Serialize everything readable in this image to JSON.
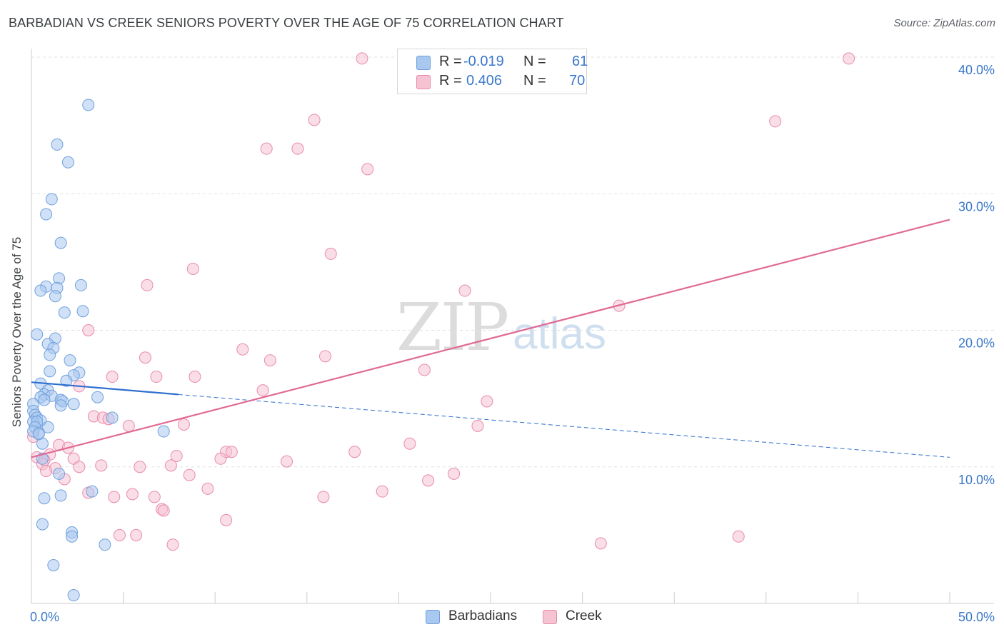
{
  "title": "BARBADIAN VS CREEK SENIORS POVERTY OVER THE AGE OF 75 CORRELATION CHART",
  "source": "Source: ZipAtlas.com",
  "watermark": {
    "zip": "ZIP",
    "atlas": "atlas"
  },
  "colors": {
    "barbadian_fill": "#a9c8f0",
    "barbadian_stroke": "#6fa0dc",
    "barbadian_line": "#2f6fd0",
    "creek_fill": "#f6c3d3",
    "creek_stroke": "#e98aaa",
    "creek_line": "#e06a95",
    "axis_text": "#3a78c9",
    "grid": "#e0e0e0"
  },
  "legend": {
    "rows": [
      {
        "r_label": "R =",
        "r_value": "-0.019",
        "n_label": "N =",
        "n_value": "61",
        "color": "#a9c8f0",
        "border": "#6fa0dc"
      },
      {
        "r_label": "R =",
        "r_value": "0.406",
        "n_label": "N =",
        "n_value": "70",
        "color": "#f6c3d3",
        "border": "#e98aaa"
      }
    ]
  },
  "bottom_legend": [
    {
      "label": "Barbadians",
      "color": "#a9c8f0",
      "border": "#6fa0dc"
    },
    {
      "label": "Creek",
      "color": "#f6c3d3",
      "border": "#e98aaa"
    }
  ],
  "chart_data": {
    "type": "scatter",
    "title": "BARBADIAN VS CREEK SENIORS POVERTY OVER THE AGE OF 75 CORRELATION CHART",
    "xlabel": "",
    "ylabel": "Seniors Poverty Over the Age of 75",
    "xlim": [
      0,
      50
    ],
    "ylim": [
      0,
      40
    ],
    "x_tick_labels": [
      {
        "value": 0,
        "label": "0.0%"
      },
      {
        "value": 50,
        "label": "50.0%"
      }
    ],
    "y_tick_labels": [
      {
        "value": 10,
        "label": "10.0%"
      },
      {
        "value": 20,
        "label": "20.0%"
      },
      {
        "value": 30,
        "label": "30.0%"
      },
      {
        "value": 40,
        "label": "40.0%"
      }
    ],
    "grid": true,
    "legend_position": "top-center",
    "series": [
      {
        "name": "Barbadians",
        "color": "#a9c8f0",
        "points": [
          [
            3.1,
            36.5
          ],
          [
            1.4,
            33.6
          ],
          [
            2.0,
            32.3
          ],
          [
            1.1,
            29.6
          ],
          [
            0.8,
            28.5
          ],
          [
            1.6,
            26.4
          ],
          [
            1.5,
            23.8
          ],
          [
            2.7,
            23.3
          ],
          [
            0.8,
            23.2
          ],
          [
            0.5,
            22.9
          ],
          [
            1.4,
            23.1
          ],
          [
            1.3,
            22.5
          ],
          [
            1.8,
            21.3
          ],
          [
            2.8,
            21.4
          ],
          [
            0.3,
            19.7
          ],
          [
            1.3,
            19.4
          ],
          [
            0.9,
            19.0
          ],
          [
            1.2,
            18.7
          ],
          [
            1.0,
            18.2
          ],
          [
            2.1,
            17.8
          ],
          [
            1.0,
            17.0
          ],
          [
            2.6,
            16.9
          ],
          [
            2.3,
            16.7
          ],
          [
            1.9,
            16.3
          ],
          [
            0.5,
            16.1
          ],
          [
            0.9,
            15.6
          ],
          [
            0.7,
            15.3
          ],
          [
            1.1,
            15.2
          ],
          [
            0.5,
            15.1
          ],
          [
            0.7,
            14.9
          ],
          [
            1.6,
            14.9
          ],
          [
            1.7,
            14.8
          ],
          [
            3.6,
            15.1
          ],
          [
            0.1,
            14.6
          ],
          [
            1.6,
            14.5
          ],
          [
            2.3,
            14.6
          ],
          [
            0.1,
            14.1
          ],
          [
            0.2,
            13.8
          ],
          [
            0.3,
            13.6
          ],
          [
            0.5,
            13.4
          ],
          [
            0.1,
            13.3
          ],
          [
            0.3,
            13.3
          ],
          [
            4.4,
            13.6
          ],
          [
            0.9,
            12.9
          ],
          [
            0.2,
            12.9
          ],
          [
            7.2,
            12.6
          ],
          [
            0.4,
            12.5
          ],
          [
            0.1,
            12.6
          ],
          [
            0.6,
            11.7
          ],
          [
            0.6,
            10.6
          ],
          [
            1.5,
            9.5
          ],
          [
            3.3,
            8.2
          ],
          [
            0.7,
            7.7
          ],
          [
            1.6,
            7.9
          ],
          [
            0.6,
            5.8
          ],
          [
            2.2,
            5.2
          ],
          [
            2.2,
            4.9
          ],
          [
            4.0,
            4.3
          ],
          [
            1.2,
            2.8
          ],
          [
            2.3,
            0.6
          ],
          [
            0.4,
            12.4
          ]
        ]
      },
      {
        "name": "Creek",
        "color": "#f6c3d3",
        "points": [
          [
            18.0,
            39.9
          ],
          [
            44.5,
            39.9
          ],
          [
            15.4,
            35.4
          ],
          [
            40.5,
            35.3
          ],
          [
            12.8,
            33.3
          ],
          [
            14.5,
            33.3
          ],
          [
            18.3,
            31.8
          ],
          [
            16.3,
            25.6
          ],
          [
            8.8,
            24.5
          ],
          [
            6.3,
            23.3
          ],
          [
            23.6,
            22.9
          ],
          [
            32.0,
            21.8
          ],
          [
            3.1,
            20.0
          ],
          [
            11.5,
            18.6
          ],
          [
            16.0,
            18.1
          ],
          [
            6.2,
            18.0
          ],
          [
            13.0,
            17.8
          ],
          [
            21.4,
            17.1
          ],
          [
            4.4,
            16.6
          ],
          [
            6.8,
            16.6
          ],
          [
            8.9,
            16.6
          ],
          [
            2.6,
            15.9
          ],
          [
            12.6,
            15.6
          ],
          [
            24.8,
            14.8
          ],
          [
            3.4,
            13.7
          ],
          [
            3.9,
            13.6
          ],
          [
            4.2,
            13.5
          ],
          [
            8.3,
            13.1
          ],
          [
            5.3,
            13.0
          ],
          [
            24.3,
            13.0
          ],
          [
            1.5,
            11.6
          ],
          [
            2.0,
            11.4
          ],
          [
            20.6,
            11.7
          ],
          [
            10.6,
            11.1
          ],
          [
            10.9,
            11.1
          ],
          [
            17.6,
            11.1
          ],
          [
            7.9,
            10.8
          ],
          [
            1.0,
            10.9
          ],
          [
            10.3,
            10.6
          ],
          [
            0.3,
            10.7
          ],
          [
            0.7,
            10.5
          ],
          [
            13.9,
            10.4
          ],
          [
            0.6,
            10.2
          ],
          [
            2.3,
            10.6
          ],
          [
            3.8,
            10.1
          ],
          [
            7.6,
            10.1
          ],
          [
            2.6,
            10.0
          ],
          [
            5.9,
            10.0
          ],
          [
            1.3,
            9.9
          ],
          [
            0.8,
            9.7
          ],
          [
            8.6,
            9.4
          ],
          [
            23.0,
            9.5
          ],
          [
            21.6,
            9.0
          ],
          [
            1.8,
            9.1
          ],
          [
            9.6,
            8.4
          ],
          [
            19.1,
            8.2
          ],
          [
            3.1,
            8.1
          ],
          [
            5.5,
            8.0
          ],
          [
            6.7,
            7.8
          ],
          [
            4.5,
            7.8
          ],
          [
            15.9,
            7.8
          ],
          [
            7.1,
            6.9
          ],
          [
            7.2,
            6.8
          ],
          [
            10.6,
            6.1
          ],
          [
            4.8,
            5.0
          ],
          [
            5.7,
            5.0
          ],
          [
            38.5,
            4.9
          ],
          [
            31.0,
            4.4
          ],
          [
            7.7,
            4.3
          ],
          [
            0.1,
            12.2
          ]
        ]
      }
    ],
    "trendlines": [
      {
        "series": "Barbadians",
        "solid": [
          [
            0,
            16.2
          ],
          [
            8,
            15.3
          ]
        ],
        "dashed": [
          [
            8,
            15.3
          ],
          [
            50,
            10.7
          ]
        ]
      },
      {
        "series": "Creek",
        "solid": [
          [
            0,
            10.7
          ],
          [
            50,
            28.1
          ]
        ]
      }
    ]
  }
}
